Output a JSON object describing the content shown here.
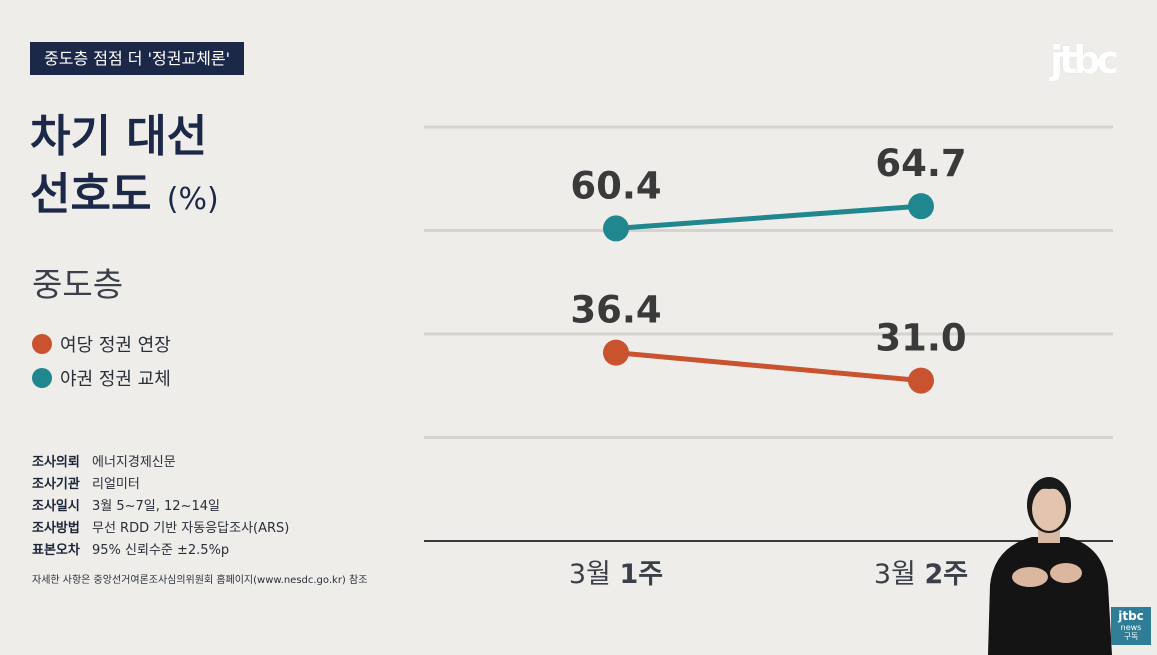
{
  "tag": "중도층 점점 더 '정권교체론'",
  "logo": "jtbc",
  "title": {
    "line1": "차기 대선",
    "line2": "선호도",
    "unit": "(%)"
  },
  "segment": "중도층",
  "legend": [
    {
      "label": "여당 정권 연장",
      "color": "#c9522f"
    },
    {
      "label": "야권 정권 교체",
      "color": "#21878f"
    }
  ],
  "survey": [
    {
      "key": "조사의뢰",
      "value": "에너지경제신문"
    },
    {
      "key": "조사기관",
      "value": "리얼미터"
    },
    {
      "key": "조사일시",
      "value": "3월 5~7일, 12~14일"
    },
    {
      "key": "조사방법",
      "value": "무선 RDD 기반 자동응답조사(ARS)"
    },
    {
      "key": "표본오차",
      "value": "95% 신뢰수준 ±2.5%p"
    }
  ],
  "survey_note": "자세한 사항은 중앙선거여론조사심의위원회 홈페이지(www.nesdc.go.kr) 참조",
  "badge": {
    "brand": "jtbc",
    "sub": "news",
    "action": "구독"
  },
  "chart_data": {
    "type": "line",
    "categories": [
      {
        "light": "3월",
        "bold": "1주"
      },
      {
        "light": "3월",
        "bold": "2주"
      }
    ],
    "series": [
      {
        "name": "야권 정권 교체",
        "values": [
          60.4,
          64.7
        ],
        "labels": [
          "60.4",
          "64.7"
        ],
        "color": "#21878f"
      },
      {
        "name": "여당 정권 연장",
        "values": [
          36.4,
          31.0
        ],
        "labels": [
          "36.4",
          "31.0"
        ],
        "color": "#c9522f"
      }
    ],
    "ylim": [
      0,
      80
    ],
    "grid": true
  }
}
